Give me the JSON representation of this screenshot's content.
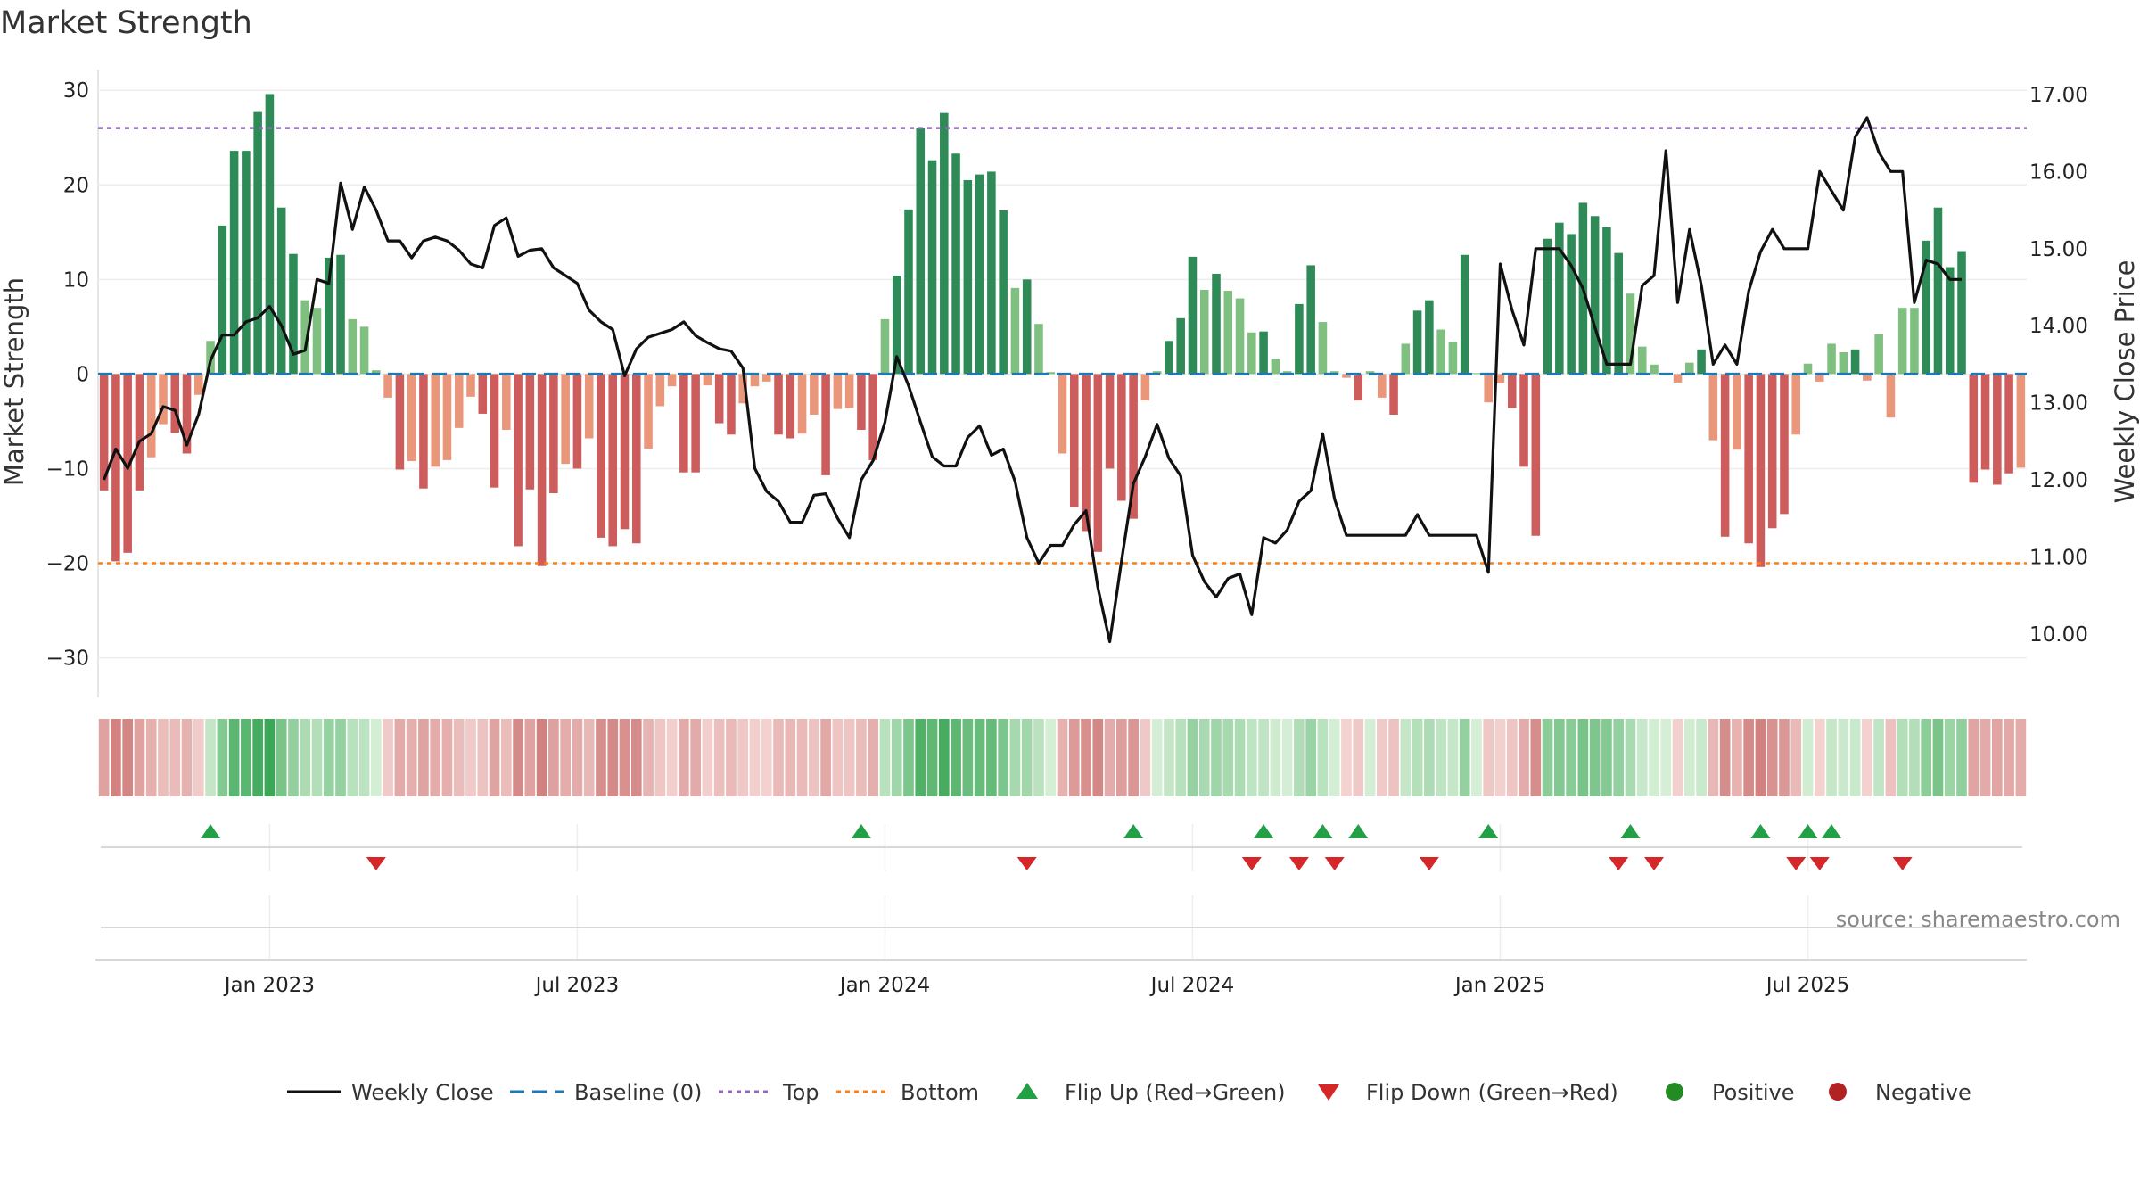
{
  "chart_data": {
    "type": "bar",
    "title": "Market Strength",
    "ylabel": "Market Strength",
    "y2label": "Weekly Close Price",
    "ylim": [
      -34,
      32
    ],
    "y2lim": [
      9.2,
      17.3
    ],
    "yticks": [
      30,
      20,
      10,
      0,
      -10,
      -20,
      -30
    ],
    "yticklabels": [
      "30",
      "20",
      "10",
      "0",
      "−10",
      "−20",
      "−30"
    ],
    "y2ticks": [
      17,
      16,
      15,
      14,
      13,
      12,
      11,
      10
    ],
    "y2ticklabels": [
      "17.00",
      "16.00",
      "15.00",
      "14.00",
      "13.00",
      "12.00",
      "11.00",
      "10.00"
    ],
    "xtick_labels": [
      "Jan 2023",
      "Jul 2023",
      "Jan 2024",
      "Jul 2024",
      "Jan 2025",
      "Jul 2025"
    ],
    "xtick_weeks": [
      14.5,
      40.5,
      66.5,
      92.5,
      118.5,
      144.5
    ],
    "reference_lines": {
      "top": 26,
      "bottom": -20,
      "baseline": 0
    },
    "series": [
      {
        "name": "Market Strength",
        "kind": "bar",
        "values": [
          -12.3,
          -19.8,
          -18.9,
          -12.3,
          -8.8,
          -5.3,
          -6.2,
          -8.4,
          -2.2,
          3.5,
          15.7,
          23.6,
          23.6,
          27.7,
          29.6,
          17.6,
          12.7,
          7.8,
          7.0,
          12.3,
          12.6,
          5.8,
          5.0,
          0.4,
          -2.5,
          -10.1,
          -9.2,
          -12.1,
          -9.8,
          -9.1,
          -5.7,
          -2.4,
          -4.2,
          -12.0,
          -5.9,
          -18.2,
          -12.2,
          -20.3,
          -12.6,
          -9.5,
          -10.0,
          -6.8,
          -17.3,
          -18.2,
          -16.4,
          -17.9,
          -7.9,
          -3.4,
          -1.3,
          -10.4,
          -10.4,
          -1.2,
          -5.2,
          -6.4,
          -3.1,
          -1.3,
          -0.8,
          -6.4,
          -6.8,
          -6.3,
          -4.3,
          -10.7,
          -3.7,
          -3.6,
          -5.9,
          -9.1,
          5.8,
          10.4,
          17.4,
          26.0,
          22.6,
          27.6,
          23.3,
          20.5,
          21.1,
          21.4,
          17.3,
          9.1,
          10.0,
          5.3,
          0.2,
          -8.4,
          -14.1,
          -16.6,
          -18.8,
          -10.0,
          -13.4,
          -15.3,
          -2.8,
          0.3,
          3.5,
          5.9,
          12.4,
          8.9,
          10.6,
          8.8,
          8.0,
          4.4,
          4.5,
          1.6,
          0.3,
          7.4,
          11.5,
          5.5,
          0.3,
          -0.4,
          -2.8,
          0.3,
          -2.5,
          -4.3,
          3.2,
          6.7,
          7.8,
          4.7,
          3.4,
          12.6,
          0.1,
          -3.0,
          -1.0,
          -3.6,
          -9.8,
          -17.1,
          14.3,
          16.0,
          14.8,
          18.1,
          16.7,
          15.5,
          12.8,
          8.5,
          2.9,
          1.0,
          0.1,
          -0.9,
          1.2,
          2.6,
          -7.0,
          -17.2,
          -8.0,
          -17.9,
          -20.4,
          -16.3,
          -14.8,
          -6.4,
          1.1,
          -0.8,
          3.2,
          2.3,
          2.6,
          -0.7,
          4.2,
          -4.6,
          7.0,
          7.0,
          14.1,
          17.6,
          11.3,
          13.0,
          -11.5,
          -10.1,
          -11.7,
          -10.5,
          -9.9
        ]
      },
      {
        "name": "Weekly Close",
        "kind": "line",
        "values": [
          12.0,
          12.4,
          12.15,
          12.5,
          12.6,
          12.95,
          12.9,
          12.45,
          12.85,
          13.55,
          13.88,
          13.88,
          14.05,
          14.1,
          14.25,
          14.0,
          13.63,
          13.68,
          14.6,
          14.55,
          15.85,
          15.25,
          15.8,
          15.5,
          15.1,
          15.1,
          14.88,
          15.1,
          15.15,
          15.1,
          14.98,
          14.8,
          14.75,
          15.3,
          15.4,
          14.9,
          14.98,
          15.0,
          14.75,
          14.65,
          14.55,
          14.2,
          14.05,
          13.95,
          13.35,
          13.7,
          13.85,
          13.9,
          13.95,
          14.05,
          13.87,
          13.78,
          13.7,
          13.67,
          13.45,
          12.15,
          11.85,
          11.72,
          11.45,
          11.45,
          11.8,
          11.82,
          11.5,
          11.25,
          12.0,
          12.25,
          12.75,
          13.6,
          13.22,
          12.75,
          12.3,
          12.18,
          12.18,
          12.55,
          12.7,
          12.32,
          12.4,
          11.98,
          11.25,
          10.92,
          11.15,
          11.15,
          11.42,
          11.6,
          10.6,
          9.9,
          10.95,
          11.95,
          12.3,
          12.72,
          12.28,
          12.05,
          11.02,
          10.68,
          10.48,
          10.72,
          10.78,
          10.25,
          11.25,
          11.18,
          11.35,
          11.72,
          11.86,
          12.6,
          11.75,
          11.28,
          11.28,
          11.28,
          11.28,
          11.28,
          11.28,
          11.55,
          11.28,
          11.28,
          11.28,
          11.28,
          11.28,
          10.8,
          14.8,
          14.2,
          13.75,
          15.0,
          15.0,
          15.0,
          14.78,
          14.48,
          13.98,
          13.5,
          13.5,
          13.5,
          14.52,
          14.65,
          16.27,
          14.3,
          15.25,
          14.52,
          13.5,
          13.75,
          13.5,
          14.45,
          14.96,
          15.25,
          15.0,
          15.0,
          15.0,
          16.0,
          15.75,
          15.5,
          16.45,
          16.7,
          16.25,
          16.0,
          16.0,
          14.3,
          14.85,
          14.8,
          14.6,
          14.6
        ]
      }
    ],
    "flip_up_weeks": [
      9,
      64,
      87,
      98,
      103,
      106,
      117,
      129,
      140,
      144,
      146
    ],
    "flip_down_weeks": [
      23,
      78,
      97,
      101,
      104,
      112,
      128,
      131,
      143,
      145,
      152
    ],
    "legend": [
      {
        "label": "Weekly Close",
        "kind": "line"
      },
      {
        "label": "Baseline (0)",
        "kind": "dashed"
      },
      {
        "label": "Top",
        "kind": "dotted-top"
      },
      {
        "label": "Bottom",
        "kind": "dotted-bottom"
      },
      {
        "label": "Flip Up (Red→Green)",
        "kind": "tri-up"
      },
      {
        "label": "Flip Down (Green→Red)",
        "kind": "tri-down"
      },
      {
        "label": "Positive",
        "kind": "dot-pos"
      },
      {
        "label": "Negative",
        "kind": "dot-neg"
      }
    ],
    "legend_position": "bottom-center",
    "source_text": "source: sharemaestro.com",
    "colors": {
      "pos_strong": "#2e8b57",
      "pos_light": "#7fbf7f",
      "neg_strong": "#cd5c5c",
      "neg_light": "#e9967a",
      "line": "#111111",
      "baseline": "#1f77b4",
      "top": "#9467bd",
      "bottom": "#ff7f0e",
      "flip_up": "#22a045",
      "flip_down": "#d62728",
      "positive_dot": "#228b22",
      "negative_dot": "#b22222"
    }
  }
}
